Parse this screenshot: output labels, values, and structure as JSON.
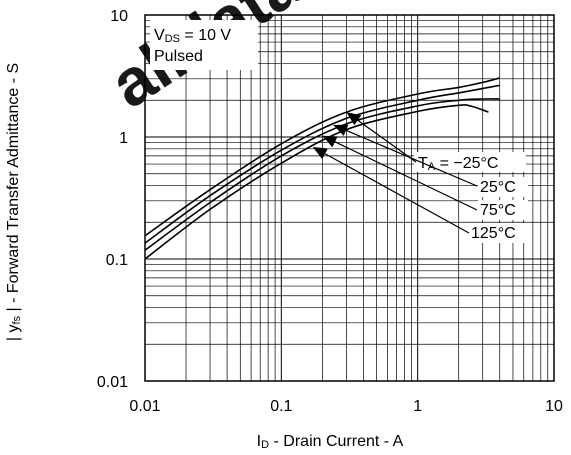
{
  "watermark_text": "alldatasheet.com",
  "chart_data": {
    "type": "line",
    "x_scale": "log",
    "y_scale": "log",
    "xlim": [
      0.01,
      10
    ],
    "ylim": [
      0.01,
      10
    ],
    "x_ticks": [
      0.01,
      0.1,
      1,
      10
    ],
    "x_tick_labels": [
      "0.01",
      "0.1",
      "1",
      "10"
    ],
    "y_ticks": [
      0.01,
      0.1,
      1,
      10
    ],
    "y_tick_labels": [
      "0.01",
      "0.1",
      "1",
      "10"
    ],
    "grid": true,
    "xlabel": {
      "main": "I",
      "sub": "D",
      "rest": " - Drain Current - A"
    },
    "ylabel": {
      "pre": "| y",
      "sub": "fs",
      "rest": " | - Forward Transfer Admittance - S"
    },
    "condition": {
      "main": "V",
      "sub": "DS",
      "rest": " = 10 V",
      "line2": "Pulsed"
    },
    "series": [
      {
        "name": "TA = −25°C",
        "x": [
          0.01,
          0.03,
          0.1,
          0.3,
          1,
          2,
          3,
          4
        ],
        "y": [
          0.155,
          0.37,
          0.88,
          1.6,
          2.25,
          2.55,
          2.8,
          3.05
        ]
      },
      {
        "name": "25°C",
        "x": [
          0.01,
          0.03,
          0.1,
          0.3,
          1,
          2,
          3,
          4
        ],
        "y": [
          0.135,
          0.33,
          0.78,
          1.42,
          2.0,
          2.3,
          2.5,
          2.65
        ]
      },
      {
        "name": "75°C",
        "x": [
          0.01,
          0.03,
          0.1,
          0.3,
          1,
          2,
          3,
          4
        ],
        "y": [
          0.118,
          0.29,
          0.7,
          1.28,
          1.8,
          2.0,
          2.05,
          2.05
        ]
      },
      {
        "name": "125°C",
        "x": [
          0.01,
          0.03,
          0.1,
          0.3,
          1,
          2,
          2.5,
          3.3
        ],
        "y": [
          0.1,
          0.255,
          0.61,
          1.15,
          1.62,
          1.82,
          1.78,
          1.6
        ]
      }
    ],
    "curve_labels": [
      {
        "main": "T",
        "sub": "A",
        "rest": " = −25°C"
      },
      {
        "text": "25°C"
      },
      {
        "text": "75°C"
      },
      {
        "text": "125°C"
      }
    ]
  }
}
